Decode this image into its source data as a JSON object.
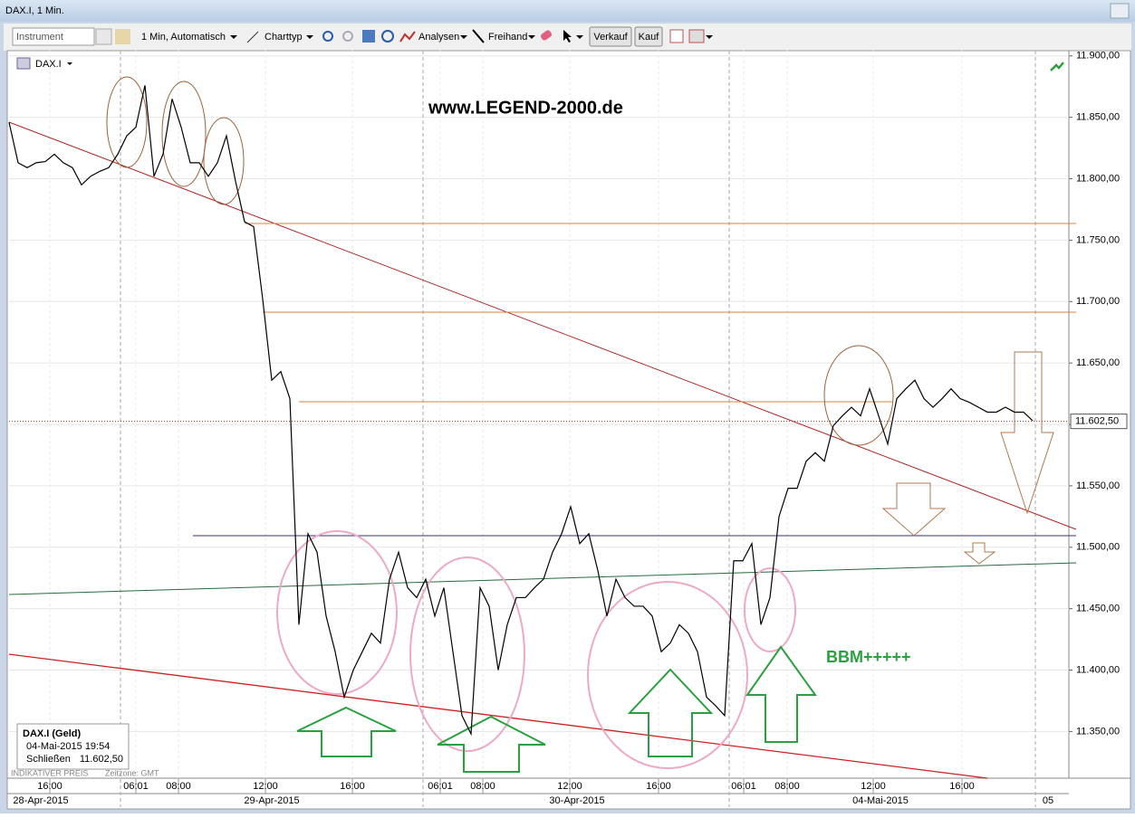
{
  "window": {
    "title": "DAX.I, 1 Min."
  },
  "toolbar": {
    "instrument": "Instrument",
    "interval": "1 Min,  Automatisch",
    "chart_type": "Charttyp",
    "analyses": "Analysen",
    "freehand": "Freihand",
    "sell": "Verkauf",
    "buy": "Kauf"
  },
  "info_box": {
    "title": "DAX.I (Geld)",
    "timestamp": "04-Mai-2015 19:54",
    "close_label": "Schließen",
    "close": "11.602,50"
  },
  "footer": {
    "price_note": "INDIKATIVER PREIS",
    "timezone": "Zeitzone: GMT"
  },
  "chart_data": {
    "type": "line",
    "annotations": {
      "watermark": "www.LEGEND-2000.de",
      "signal": "BBM+++++"
    },
    "series": [
      {
        "name": "DAX.I",
        "color": "#000000",
        "values": [
          11846,
          11813,
          11809,
          11813,
          11814,
          11820,
          11813,
          11809,
          11795,
          11802,
          11806,
          11809,
          11820,
          11835,
          11842,
          11876,
          11802,
          11820,
          11865,
          11842,
          11813,
          11813,
          11802,
          11813,
          11835,
          11798,
          11765,
          11761,
          11702,
          11636,
          11643,
          11621,
          11437,
          11511,
          11496,
          11444,
          11415,
          11378,
          11400,
          11415,
          11430,
          11422,
          11474,
          11496,
          11467,
          11459,
          11474,
          11444,
          11467,
          11415,
          11363,
          11348,
          11467,
          11452,
          11400,
          11437,
          11459,
          11459,
          11467,
          11474,
          11496,
          11511,
          11533,
          11503,
          11511,
          11481,
          11444,
          11474,
          11459,
          11452,
          11452,
          11444,
          11415,
          11422,
          11437,
          11430,
          11415,
          11378,
          11371,
          11363,
          11489,
          11489,
          11503,
          11437,
          11459,
          11525,
          11548,
          11548,
          11570,
          11577,
          11570,
          11599,
          11607,
          11614,
          11607,
          11629,
          11607,
          11584,
          11621,
          11629,
          11636,
          11621,
          11614,
          11621,
          11629,
          11621,
          11618,
          11614,
          11610,
          11610,
          11614,
          11610,
          11610,
          11603
        ]
      }
    ],
    "xlim": [
      0,
      117
    ],
    "ylim": [
      11312,
      11905
    ],
    "xticks": [
      {
        "value": 4.5,
        "label": "16:00"
      },
      {
        "value": 14,
        "label": "06:01"
      },
      {
        "value": 18.7,
        "label": "08:00"
      },
      {
        "value": 28.3,
        "label": "12:00"
      },
      {
        "value": 37.9,
        "label": "16:00"
      },
      {
        "value": 47.6,
        "label": "06:01"
      },
      {
        "value": 52.3,
        "label": "08:00"
      },
      {
        "value": 61.9,
        "label": "12:00"
      },
      {
        "value": 71.7,
        "label": "16:00"
      },
      {
        "value": 81.1,
        "label": "06:01"
      },
      {
        "value": 85.9,
        "label": "08:00"
      },
      {
        "value": 95.4,
        "label": "12:00"
      },
      {
        "value": 105.2,
        "label": "16:00"
      }
    ],
    "date_labels": [
      {
        "value": 3.5,
        "label": "28-Apr-2015"
      },
      {
        "value": 29,
        "label": "29-Apr-2015"
      },
      {
        "value": 62.7,
        "label": "30-Apr-2015"
      },
      {
        "value": 96.2,
        "label": "04-Mai-2015"
      },
      {
        "value": 114.7,
        "label": "05"
      }
    ],
    "yticks": [
      {
        "value": 11350,
        "label": "11.350,00"
      },
      {
        "value": 11400,
        "label": "11.400,00"
      },
      {
        "value": 11450,
        "label": "11.450,00"
      },
      {
        "value": 11500,
        "label": "11.500,00"
      },
      {
        "value": 11550,
        "label": "11.550,00"
      },
      {
        "value": 11600,
        "label": "11.600,00"
      },
      {
        "value": 11650,
        "label": "11.650,00"
      },
      {
        "value": 11700,
        "label": "11.700,00"
      },
      {
        "value": 11750,
        "label": "11.750,00"
      },
      {
        "value": 11800,
        "label": "11.800,00"
      },
      {
        "value": 11850,
        "label": "11.850,00"
      },
      {
        "value": 11900,
        "label": "11.900,00"
      }
    ],
    "last_price": {
      "value": 11602.5,
      "label": "11.602,50"
    },
    "grid": true
  }
}
